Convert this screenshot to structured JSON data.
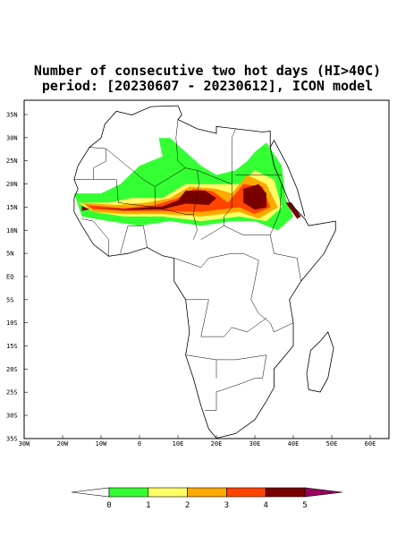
{
  "title": {
    "line1": "Number of consecutive two hot days (HI>40C)",
    "line2": "period: [20230607 - 20230612], ICON model"
  },
  "map": {
    "lat_labels": [
      "35N",
      "30N",
      "25N",
      "20N",
      "15N",
      "10N",
      "5N",
      "EQ",
      "5S",
      "10S",
      "15S",
      "20S",
      "25S",
      "30S",
      "35S"
    ],
    "lon_labels": [
      "30W",
      "20W",
      "10W",
      "0",
      "10E",
      "20E",
      "30E",
      "40E",
      "50E",
      "60E"
    ]
  },
  "colorbar": {
    "labels": [
      0,
      1,
      2,
      3,
      4,
      5
    ],
    "colors": [
      "#ffffff",
      "#33ff33",
      "#ffff66",
      "#ffaa00",
      "#ff4400",
      "#7a0000",
      "#99005a"
    ]
  }
}
